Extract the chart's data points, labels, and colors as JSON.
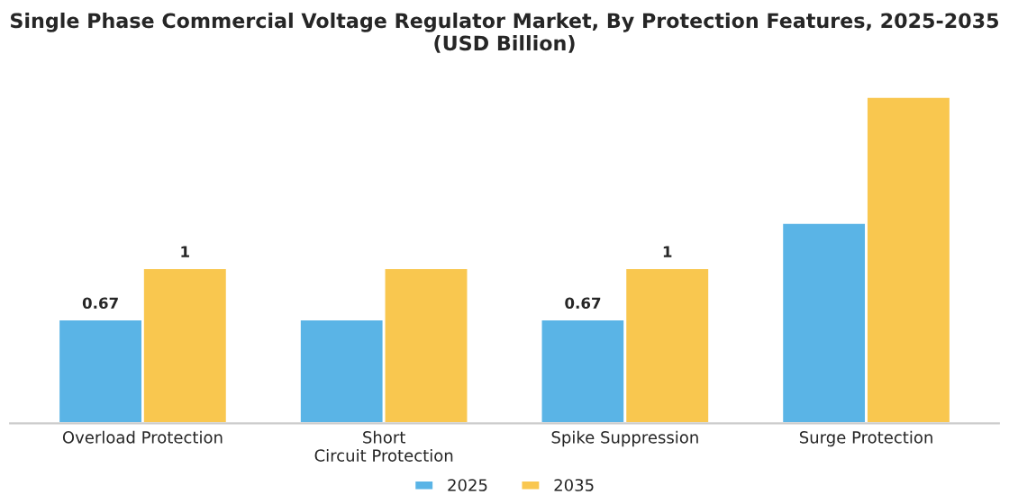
{
  "chart_data": {
    "type": "bar",
    "title": "Single Phase Commercial Voltage Regulator Market, By Protection Features, 2025-2035 (USD Billion)",
    "categories": [
      "Overload Protection",
      "Short Circuit Protection",
      "Spike Suppression",
      "Surge Protection"
    ],
    "series": [
      {
        "name": "2025",
        "color": "#5ab4e6",
        "values": [
          0.67,
          0.67,
          0.67,
          1.29
        ],
        "value_labels": [
          "0.67",
          null,
          "0.67",
          null
        ]
      },
      {
        "name": "2035",
        "color": "#f9c74f",
        "values": [
          1,
          1,
          1,
          2.1
        ],
        "value_labels": [
          "1",
          null,
          "1",
          null
        ]
      }
    ],
    "legend": "bottom"
  }
}
